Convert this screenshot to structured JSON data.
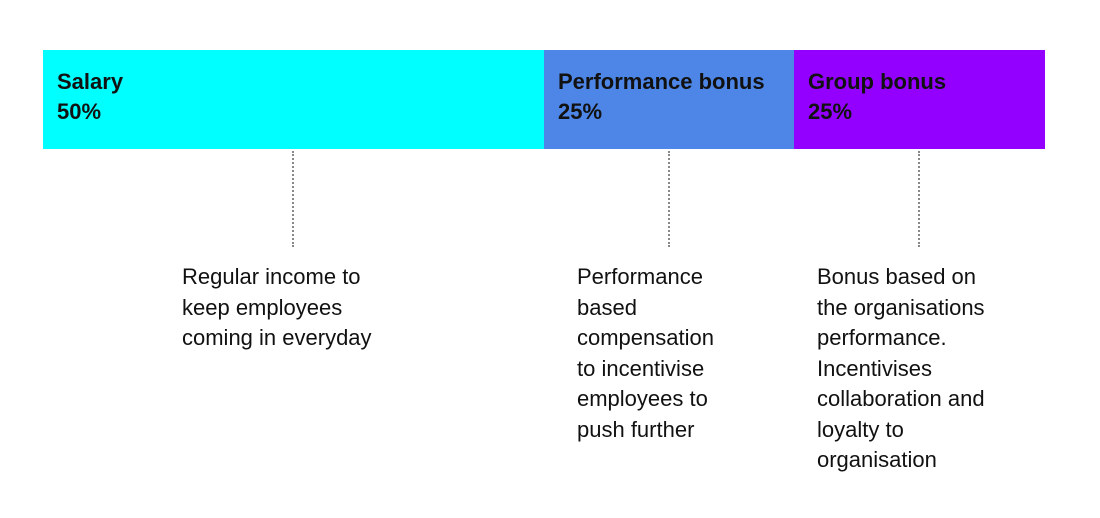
{
  "segments": [
    {
      "label": "Salary",
      "value": "50%",
      "color": "#00FFFF",
      "share": 50,
      "description": [
        "Regular income to",
        "keep employees",
        "coming in everyday"
      ]
    },
    {
      "label": "Performance bonus",
      "value": "25%",
      "color": "#4D86E6",
      "share": 25,
      "description": [
        "Performance",
        "based",
        "compensation",
        "to incentivise",
        "employees to",
        "push further"
      ]
    },
    {
      "label": "Group bonus",
      "value": "25%",
      "color": "#9400FF",
      "share": 25,
      "description": [
        "Bonus based on",
        "the organisations",
        "performance.",
        "Incentivises",
        "collaboration and",
        "loyalty to",
        "organisation"
      ]
    }
  ]
}
